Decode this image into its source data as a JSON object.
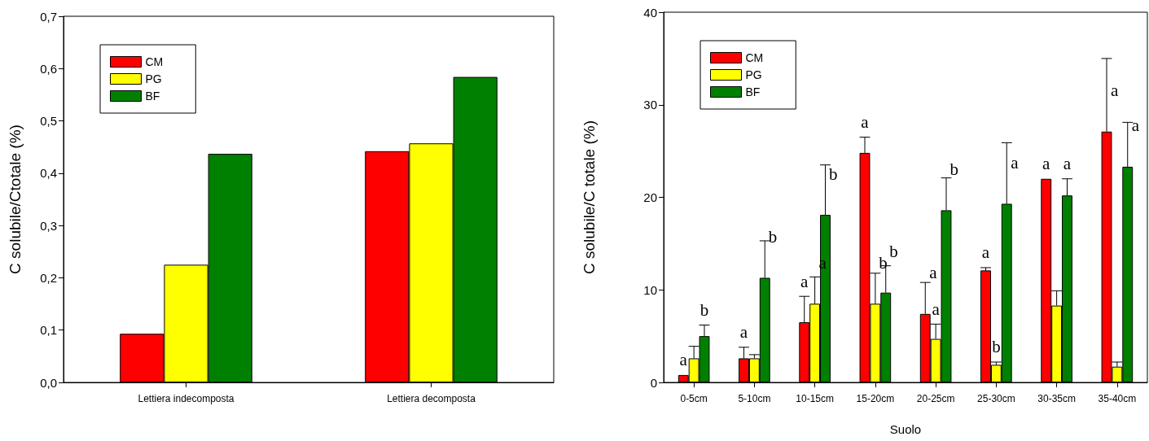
{
  "chart_data": [
    {
      "type": "bar",
      "ylabel": "C solubile/Ctotale (%)",
      "categories": [
        "Lettiera indecomposta",
        "Lettiera decomposta"
      ],
      "series": [
        {
          "name": "CM",
          "color": "#ff0000",
          "values": [
            0.093,
            0.442
          ]
        },
        {
          "name": "PG",
          "color": "#ffff00",
          "values": [
            0.225,
            0.457
          ]
        },
        {
          "name": "BF",
          "color": "#008000",
          "values": [
            0.437,
            0.584
          ]
        }
      ],
      "ylim": [
        0,
        0.7
      ],
      "yticks": [
        {
          "value": 0,
          "label": "0,0"
        },
        {
          "value": 0.1,
          "label": "0,1"
        },
        {
          "value": 0.2,
          "label": "0,2"
        },
        {
          "value": 0.3,
          "label": "0,3"
        },
        {
          "value": 0.4,
          "label": "0,4"
        },
        {
          "value": 0.5,
          "label": "0,5"
        },
        {
          "value": 0.6,
          "label": "0,6"
        },
        {
          "value": 0.7,
          "label": "0,7"
        }
      ],
      "legend": "top left"
    },
    {
      "type": "bar",
      "xlabel": "Suolo",
      "ylabel": "C solubile/C totale (%)",
      "categories": [
        "0-5cm",
        "5-10cm",
        "10-15cm",
        "15-20cm",
        "20-25cm",
        "25-30cm",
        "30-35cm",
        "35-40cm"
      ],
      "series": [
        {
          "name": "CM",
          "color": "#ff0000",
          "values": [
            0.8,
            2.6,
            6.5,
            24.8,
            7.4,
            12.1,
            22.0,
            27.1
          ],
          "errors": [
            null,
            [
              2.6,
              3.8
            ],
            [
              6.5,
              9.3
            ],
            [
              24.8,
              26.5
            ],
            [
              7.4,
              10.8
            ],
            [
              12.1,
              12.4
            ],
            null,
            [
              27.1,
              35.0
            ]
          ],
          "value_labels": [
            "a",
            "a",
            "a",
            "a",
            "a",
            "a",
            "a",
            "a"
          ]
        },
        {
          "name": "PG",
          "color": "#ffff00",
          "values": [
            2.6,
            2.6,
            8.5,
            8.5,
            4.7,
            1.9,
            8.3,
            1.7
          ],
          "errors": [
            [
              2.6,
              3.9
            ],
            [
              2.6,
              3.0
            ],
            [
              8.5,
              11.4
            ],
            [
              8.5,
              11.8
            ],
            [
              4.7,
              6.3
            ],
            [
              1.9,
              2.2
            ],
            [
              8.3,
              9.9
            ],
            [
              1.7,
              2.2
            ]
          ],
          "value_labels": [
            null,
            null,
            "a",
            "b",
            "a",
            "b",
            null,
            null
          ]
        },
        {
          "name": "BF",
          "color": "#008000",
          "values": [
            5.0,
            11.3,
            18.1,
            9.7,
            18.6,
            19.3,
            20.2,
            23.3
          ],
          "errors": [
            [
              5.0,
              6.2
            ],
            [
              11.3,
              15.3
            ],
            [
              18.1,
              23.5
            ],
            [
              9.7,
              12.6
            ],
            [
              18.6,
              22.1
            ],
            [
              19.3,
              25.9
            ],
            [
              20.2,
              22.0
            ],
            [
              23.3,
              28.1
            ]
          ],
          "value_labels": [
            "b",
            "b",
            "b",
            "b",
            "b",
            "a",
            "a",
            "a"
          ]
        }
      ],
      "ylim": [
        0,
        40
      ],
      "yticks": [
        0,
        10,
        20,
        30,
        40
      ],
      "legend": "top left"
    }
  ]
}
